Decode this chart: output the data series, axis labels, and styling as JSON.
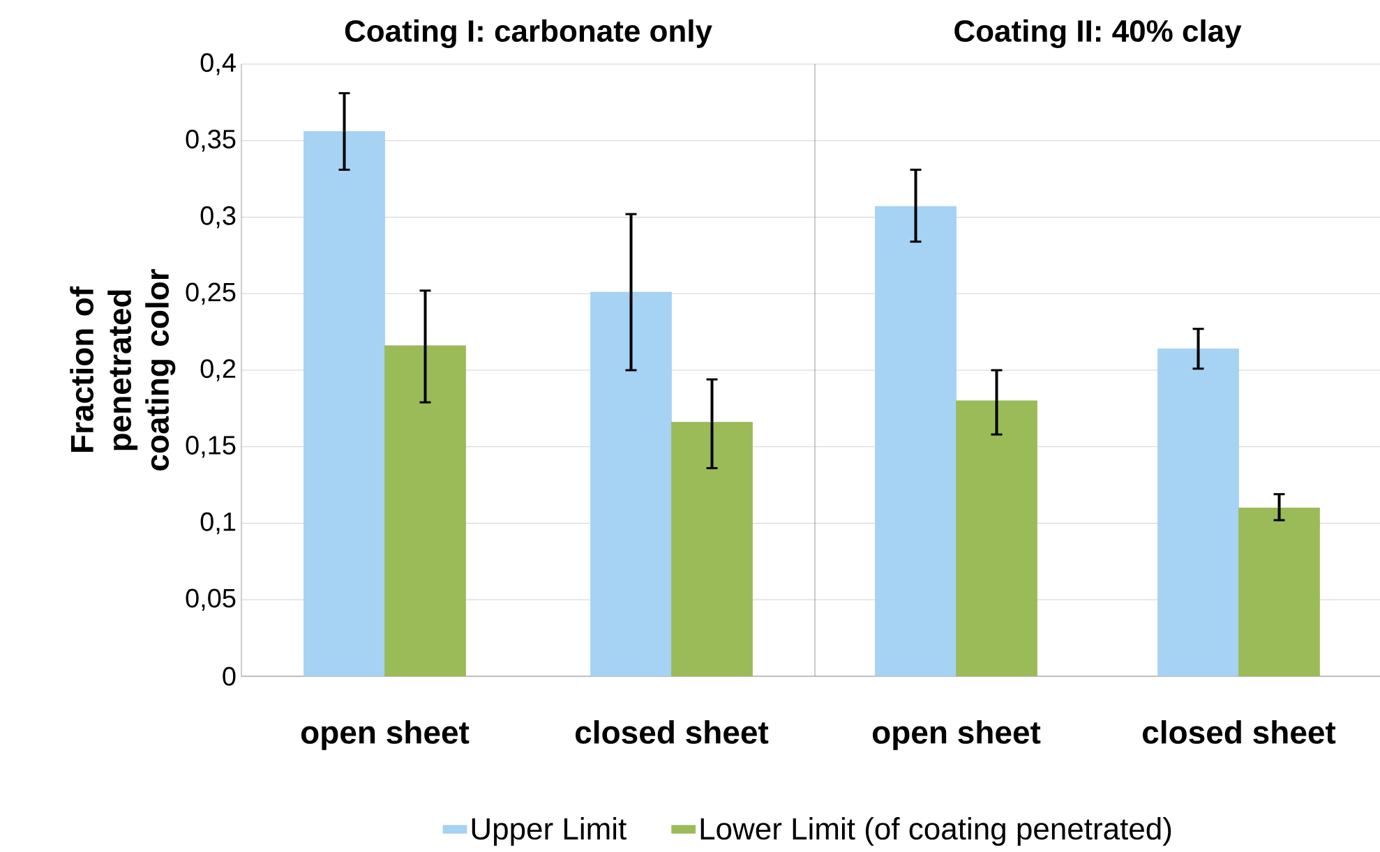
{
  "chart_data": [
    {
      "type": "bar",
      "title": "Coating I: carbonate only",
      "ylabel": "Fraction of penetrated coating color",
      "categories": [
        "open sheet",
        "closed sheet"
      ],
      "ylim": [
        0,
        0.4
      ],
      "yticks": [
        0,
        {
          "value": 0.05,
          "label": "0,05"
        },
        {
          "value": 0.1,
          "label": "0,1"
        },
        {
          "value": 0.15,
          "label": "0,15"
        },
        {
          "value": 0.2,
          "label": "0,2"
        },
        {
          "value": 0.25,
          "label": "0,25"
        },
        {
          "value": 0.3,
          "label": "0,3"
        },
        {
          "value": 0.35,
          "label": "0,35"
        },
        {
          "value": 0.4,
          "label": "0,4"
        }
      ],
      "grid": "y",
      "legend": "bottom",
      "series": [
        {
          "name": "Upper Limit",
          "color": "#a6d2f3",
          "values": [
            0.356,
            0.251
          ],
          "errors": [
            [
              0.331,
              0.381
            ],
            [
              0.2,
              0.302
            ]
          ]
        },
        {
          "name": "Lower Limit (of coating penetrated)",
          "color": "#9bbb59",
          "values": [
            0.216,
            0.166
          ],
          "errors": [
            [
              0.179,
              0.252
            ],
            [
              0.136,
              0.194
            ]
          ]
        }
      ]
    },
    {
      "type": "bar",
      "title": "Coating II: 40% clay",
      "categories": [
        "open sheet",
        "closed sheet"
      ],
      "ylim": [
        0,
        0.4
      ],
      "yticks": [
        {
          "value": 0,
          "label": null
        },
        {
          "value": 0.05,
          "label": null
        },
        {
          "value": 0.1,
          "label": null
        },
        {
          "value": 0.15,
          "label": null
        },
        {
          "value": 0.2,
          "label": null
        },
        {
          "value": 0.25,
          "label": null
        },
        {
          "value": 0.3,
          "label": null
        },
        {
          "value": 0.35,
          "label": null
        },
        {
          "value": 0.4,
          "label": null
        }
      ],
      "grid": "y",
      "tick_labels": "x",
      "series": [
        {
          "color": "#a6d2f3",
          "values": [
            0.307,
            0.214
          ],
          "errors": [
            [
              0.284,
              0.331
            ],
            [
              0.201,
              0.227
            ]
          ]
        },
        {
          "color": "#9bbb59",
          "values": [
            0.18,
            0.11
          ],
          "errors": [
            [
              0.158,
              0.2
            ],
            [
              0.102,
              0.119
            ]
          ]
        }
      ]
    }
  ]
}
